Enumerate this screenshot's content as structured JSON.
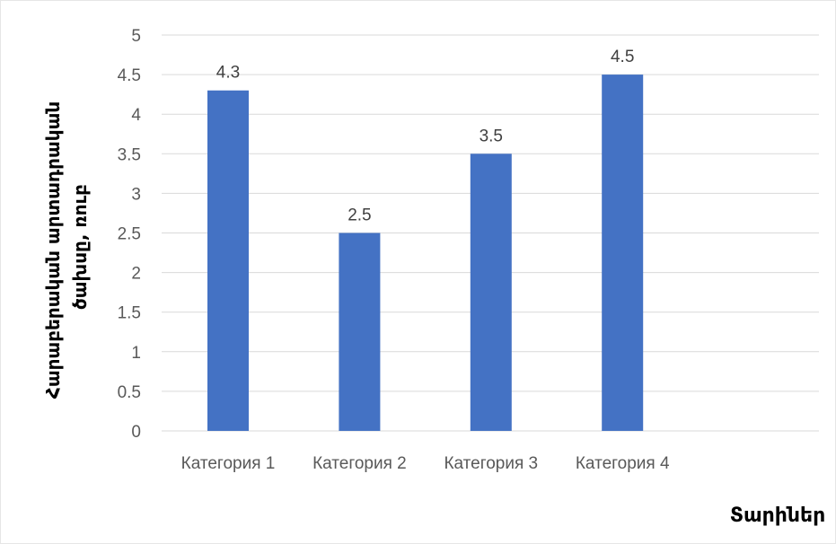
{
  "chart_data": {
    "type": "bar",
    "title": "",
    "categories": [
      "Категория 1",
      "Категория 2",
      "Категория 3",
      "Категория 4"
    ],
    "series": [
      {
        "values": [
          4.3,
          2.5,
          3.5,
          4.5
        ],
        "color": "#4472C4"
      }
    ],
    "ylim": [
      0,
      5
    ],
    "yticks": [
      "0",
      "0.5",
      "1",
      "1.5",
      "2",
      "2.5",
      "3",
      "3.5",
      "4",
      "4.5",
      "5"
    ],
    "data_labels": [
      "4.3",
      "2.5",
      "3.5",
      "4.5"
    ],
    "ylabel_lines": [
      "Հարաբերական արտադրական",
      "ծախսը, ռուբ"
    ],
    "xlabel": "Տարիներ",
    "grid": true,
    "legend": "none",
    "gridline_color": "#D9D9D9"
  }
}
